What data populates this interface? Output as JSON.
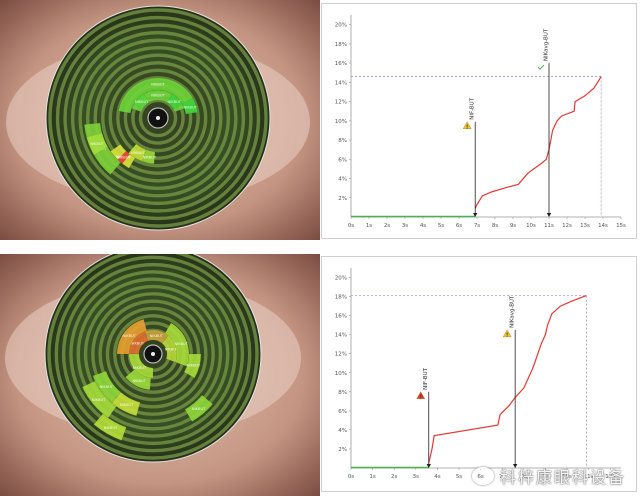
{
  "watermark": {
    "text": "科梓康眼科设备",
    "icon": "wechat-icon"
  },
  "eyes": [
    {
      "labels": [
        "NIKBUT",
        "NIKBUT",
        "NIKBUT",
        "NIKBUT",
        "NIKBUT",
        "NIKBUT",
        "NIKBUT",
        "NIKBUT",
        "NIKBUT",
        "NIKBUT",
        "NIKBUT"
      ],
      "colors": {
        "iris": "#3a2a20",
        "sclera": "#d8b8a8",
        "ring": "#27421a",
        "ringLight": "#6b8f3a"
      }
    },
    {
      "labels": [
        "NIKBUT",
        "NIKBUT",
        "NIKBUT",
        "NIKBUT",
        "NIKBUT",
        "NIKBUT",
        "NIKBUT",
        "NIKBUT",
        "NIKBUT",
        "NIKBUT",
        "NIKBUT",
        "NIKBUT",
        "NIKBUT"
      ],
      "colors": {
        "iris": "#3a2a20",
        "sclera": "#d8b8a8",
        "ring": "#27421a",
        "ringLight": "#6b8f3a"
      }
    }
  ],
  "chart_data": [
    {
      "type": "line",
      "x_ticks": [
        "0s",
        "1s",
        "2s",
        "3s",
        "4s",
        "5s",
        "6s",
        "7s",
        "8s",
        "9s",
        "10s",
        "11s",
        "12s",
        "13s",
        "14s",
        "15s"
      ],
      "y_ticks": [
        "2%",
        "4%",
        "6%",
        "8%",
        "10%",
        "12%",
        "14%",
        "16%",
        "18%",
        "20%"
      ],
      "xlim": [
        0,
        15
      ],
      "ylim": [
        0,
        21
      ],
      "baseline": {
        "x_end": 6.9,
        "color": "#4caf50"
      },
      "series": [
        {
          "x": [
            6.9,
            7.0,
            7.3,
            7.8,
            8.5,
            9.3,
            9.8,
            10.0,
            10.3,
            10.6,
            10.85,
            11.0,
            11.2,
            11.45,
            11.7,
            12.4,
            12.45,
            13.0,
            13.5,
            13.9
          ],
          "y": [
            0.9,
            1.3,
            2.2,
            2.6,
            3.0,
            3.4,
            4.5,
            4.8,
            5.2,
            5.6,
            6.0,
            7.0,
            9.0,
            10.0,
            10.5,
            11.0,
            12.0,
            12.6,
            13.4,
            14.6
          ],
          "color": "#e53935"
        }
      ],
      "ref_lines": {
        "y": 14.6,
        "x": 13.9,
        "color": "#9c9cd6"
      },
      "markers": [
        {
          "label": "NIF-BUT",
          "x": 6.9,
          "y_top": 9.9,
          "icon": "warning-icon",
          "icon_color": "#f2c232"
        },
        {
          "label": "NIKavg-BUT",
          "x": 11.0,
          "y_top": 16.0,
          "icon": "checkmark-icon",
          "icon_color": "#4caf50"
        }
      ]
    },
    {
      "type": "line",
      "x_ticks": [
        "0s",
        "1s",
        "2s",
        "3s",
        "4s",
        "5s",
        "6s",
        "7s",
        "8s",
        "9s",
        "10s",
        "11s",
        "12s"
      ],
      "y_ticks": [
        "2%",
        "4%",
        "6%",
        "8%",
        "10%",
        "12%",
        "14%",
        "16%",
        "18%",
        "20%"
      ],
      "xlim": [
        0,
        12.5
      ],
      "ylim": [
        0,
        21
      ],
      "baseline": {
        "x_end": 3.6,
        "color": "#4caf50"
      },
      "series": [
        {
          "x": [
            3.6,
            3.7,
            3.75,
            3.85,
            6.8,
            6.9,
            7.3,
            7.6,
            8.0,
            8.4,
            8.5,
            8.8,
            9.0,
            9.1,
            9.3,
            9.7,
            10.2,
            10.9
          ],
          "y": [
            0.5,
            1.5,
            2.0,
            3.4,
            4.5,
            5.6,
            6.5,
            7.4,
            8.4,
            10.4,
            11.0,
            13.0,
            14.0,
            15.0,
            16.2,
            17.0,
            17.5,
            18.1
          ],
          "color": "#e53935"
        }
      ],
      "ref_lines": {
        "y": 18.1,
        "x": 10.9,
        "color": "#9c9cd6"
      },
      "markers": [
        {
          "label": "NIF-BUT",
          "x": 3.6,
          "y_top": 8.0,
          "icon": "warning-icon",
          "icon_color": "#e53935"
        },
        {
          "label": "NIKavg-BUT",
          "x": 7.6,
          "y_top": 14.5,
          "icon": "warning-icon",
          "icon_color": "#f2c232"
        }
      ]
    }
  ]
}
